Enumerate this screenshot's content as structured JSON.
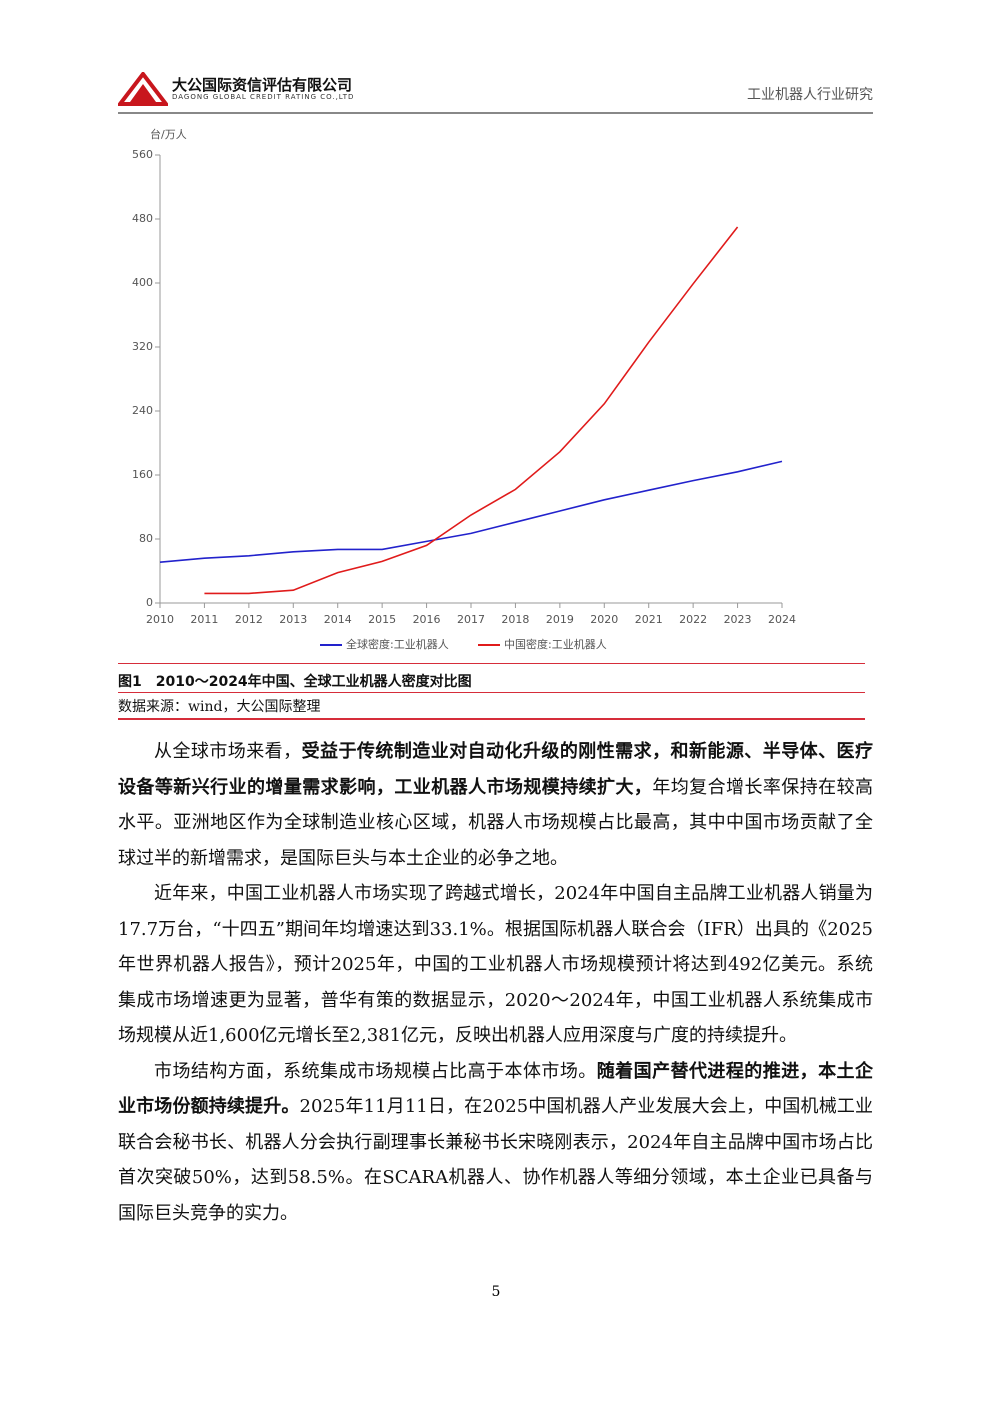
{
  "header": {
    "company": "大公国际资信评估有限公司",
    "company_en": "DAGONG GLOBAL CREDIT RATING CO.,LTD",
    "report": "工业机器人行业研究"
  },
  "chart_data": {
    "type": "line",
    "y_label": "台/万人",
    "categories": [
      "2010",
      "2011",
      "2012",
      "2013",
      "2014",
      "2015",
      "2016",
      "2017",
      "2018",
      "2019",
      "2020",
      "2021",
      "2022",
      "2023",
      "2024"
    ],
    "series": [
      {
        "name": "全球密度:工业机器人",
        "color": "#2222cc",
        "values": [
          51,
          56,
          59,
          64,
          67,
          67,
          77,
          87,
          101,
          115,
          129,
          141,
          153,
          164,
          177
        ]
      },
      {
        "name": "中国密度:工业机器人",
        "color": "#e01b1b",
        "values": [
          null,
          12,
          12,
          16,
          38,
          52,
          72,
          110,
          142,
          189,
          249,
          326,
          399,
          470,
          null
        ]
      }
    ],
    "ylim": [
      0,
      560
    ],
    "yticks": [
      0,
      80,
      160,
      240,
      320,
      400,
      480,
      560
    ],
    "legend": "bottom"
  },
  "caption": {
    "title": "图1　2010～2024年中国、全球工业机器人密度对比图",
    "source": "数据来源：wind，大公国际整理"
  },
  "paragraphs": [
    [
      {
        "text": "从全球市场来看，",
        "bold": false
      },
      {
        "text": "受益于传统制造业对自动化升级的刚性需求，和新能源、半导体、医疗设备等新兴行业的增量需求影响，工业机器人市场规模持续扩大，",
        "bold": true
      },
      {
        "text": "年均复合增长率保持在较高水平。亚洲地区作为全球制造业核心区域，机器人市场规模占比最高，其中中国市场贡献了全球过半的新增需求，是国际巨头与本土企业的必争之地。",
        "bold": false
      }
    ],
    [
      {
        "text": "近年来，中国工业机器人市场实现了跨越式增长，2024年中国自主品牌工业机器人销量为17.7万台，“十四五”期间年均增速达到33.1%。根据国际机器人联合会（IFR）出具的《2025年世界机器人报告》，预计2025年，中国的工业机器人市场规模预计将达到492亿美元。系统集成市场增速更为显著，普华有策的数据显示，2020～2024年，中国工业机器人系统集成市场规模从近1,600亿元增长至2,381亿元，反映出机器人应用深度与广度的持续提升。",
        "bold": false
      }
    ],
    [
      {
        "text": "市场结构方面，系统集成市场规模占比高于本体市场。",
        "bold": false
      },
      {
        "text": "随着国产替代进程的推进，本土企业市场份额持续提升。",
        "bold": true
      },
      {
        "text": "2025年11月11日，在2025中国机器人产业发展大会上，中国机械工业联合会秘书长、机器人分会执行副理事长兼秘书长宋晓刚表示，2024年自主品牌中国市场占比首次突破50%，达到58.5%。在SCARA机器人、协作机器人等细分领域，本土企业已具备与国际巨头竞争的实力。",
        "bold": false
      }
    ]
  ],
  "page_number": "5"
}
